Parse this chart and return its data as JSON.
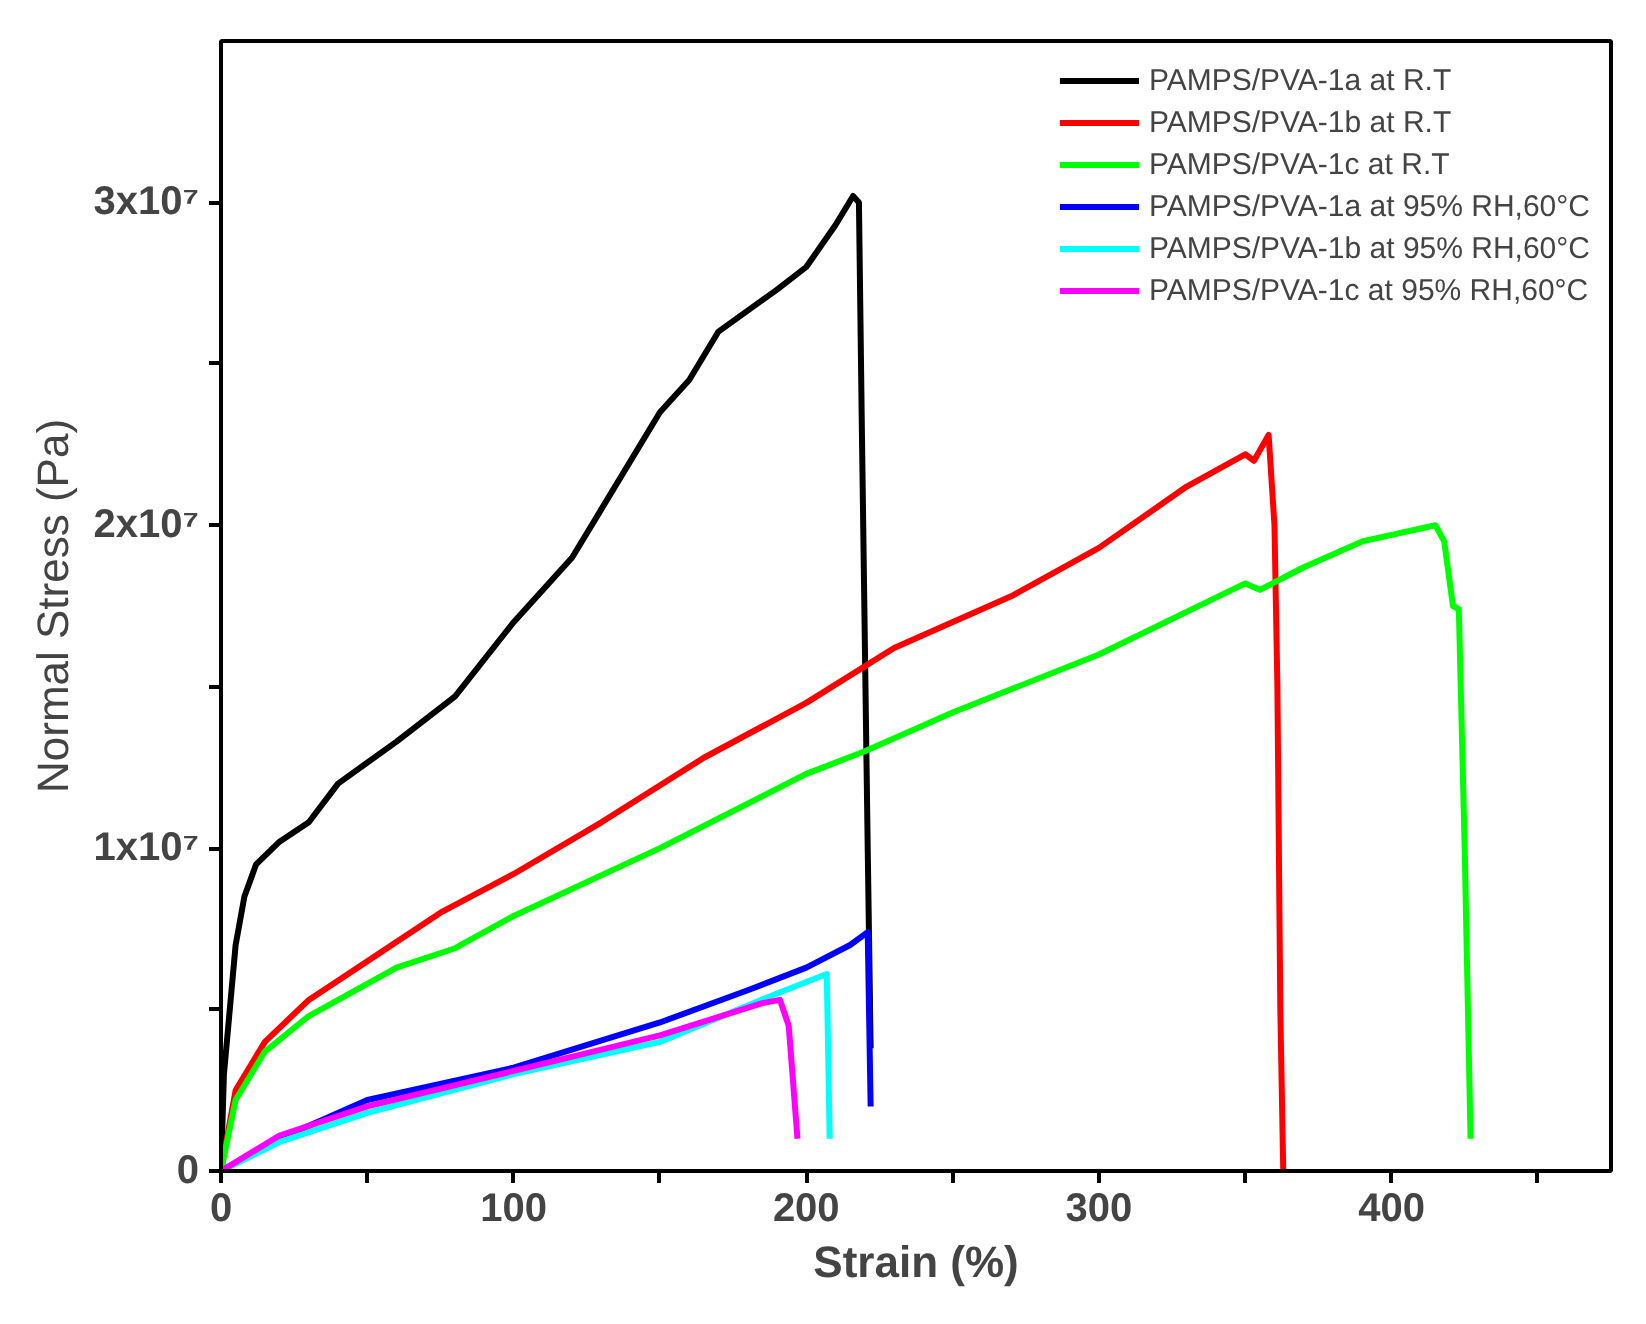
{
  "chart_data": {
    "type": "line",
    "xlabel": "Strain (%)",
    "ylabel": "Normal Stress (Pa)",
    "xlim": [
      0,
      475
    ],
    "ylim": [
      0,
      35000000
    ],
    "xticks": [
      0,
      {
        "value": 50,
        "label": null
      },
      100,
      {
        "value": 150,
        "label": null
      },
      200,
      {
        "value": 250,
        "label": null
      },
      300,
      {
        "value": 350,
        "label": null
      },
      400,
      {
        "value": 450,
        "label": null
      }
    ],
    "yticks": [
      {
        "value": 0,
        "label": "0"
      },
      {
        "value": 5000000,
        "label": null
      },
      {
        "value": 10000000,
        "label": "1x10⁷"
      },
      {
        "value": 15000000,
        "label": null
      },
      {
        "value": 20000000,
        "label": "2x10⁷"
      },
      {
        "value": 25000000,
        "label": null
      },
      {
        "value": 30000000,
        "label": "3x10⁷"
      }
    ],
    "grid": false,
    "legend": "top right",
    "line_style": "solid",
    "series": [
      {
        "name": "PAMPS/PVA-1a at R.T",
        "color": "#000000",
        "x": [
          0,
          1,
          3,
          5,
          8,
          12,
          20,
          30,
          40,
          60,
          80,
          100,
          120,
          130,
          150,
          160,
          170,
          190,
          200,
          210,
          216,
          218,
          219,
          221,
          222
        ],
        "values": [
          0,
          3000000,
          5000000,
          7000000,
          8500000,
          9500000,
          10200000,
          10800000,
          12000000,
          13300000,
          14700000,
          17000000,
          19000000,
          20500000,
          23500000,
          24500000,
          26000000,
          27300000,
          28000000,
          29300000,
          30200000,
          30000000,
          23000000,
          10000000,
          3800000
        ]
      },
      {
        "name": "PAMPS/PVA-1b at R.T",
        "color": "#ff0000",
        "x": [
          0,
          5,
          15,
          30,
          50,
          75,
          100,
          130,
          165,
          200,
          230,
          270,
          300,
          330,
          350,
          353,
          358,
          360,
          361,
          362,
          363
        ],
        "values": [
          0,
          2500000,
          4000000,
          5300000,
          6500000,
          8000000,
          9200000,
          10800000,
          12800000,
          14500000,
          16200000,
          17800000,
          19300000,
          21200000,
          22200000,
          22000000,
          22800000,
          20000000,
          15000000,
          5000000,
          0
        ]
      },
      {
        "name": "PAMPS/PVA-1c at R.T",
        "color": "#00ff00",
        "x": [
          0,
          5,
          15,
          30,
          60,
          80,
          100,
          150,
          200,
          220,
          250,
          300,
          350,
          355,
          370,
          390,
          415,
          418,
          421,
          423,
          425,
          427
        ],
        "values": [
          0,
          2200000,
          3700000,
          4800000,
          6300000,
          6900000,
          7900000,
          10000000,
          12300000,
          13000000,
          14200000,
          16000000,
          18200000,
          18000000,
          18700000,
          19500000,
          20000000,
          19500000,
          17500000,
          17400000,
          10000000,
          1000000
        ]
      },
      {
        "name": "PAMPS/PVA-1a at 95% RH,60°C",
        "color": "#0000ff",
        "x": [
          0,
          20,
          50,
          100,
          150,
          180,
          200,
          215,
          221,
          222
        ],
        "values": [
          0,
          1000000,
          2200000,
          3200000,
          4600000,
          5600000,
          6300000,
          7000000,
          7400000,
          2000000
        ]
      },
      {
        "name": "PAMPS/PVA-1b at 95% RH,60°C",
        "color": "#00ffff",
        "x": [
          0,
          20,
          50,
          100,
          150,
          190,
          207,
          208
        ],
        "values": [
          0,
          900000,
          1800000,
          3000000,
          4000000,
          5500000,
          6100000,
          1000000
        ]
      },
      {
        "name": "PAMPS/PVA-1c at 95% RH,60°C",
        "color": "#ff00ff",
        "x": [
          0,
          20,
          50,
          100,
          150,
          185,
          191,
          194,
          197
        ],
        "values": [
          0,
          1100000,
          2000000,
          3100000,
          4200000,
          5200000,
          5300000,
          4500000,
          1000000
        ]
      }
    ]
  }
}
